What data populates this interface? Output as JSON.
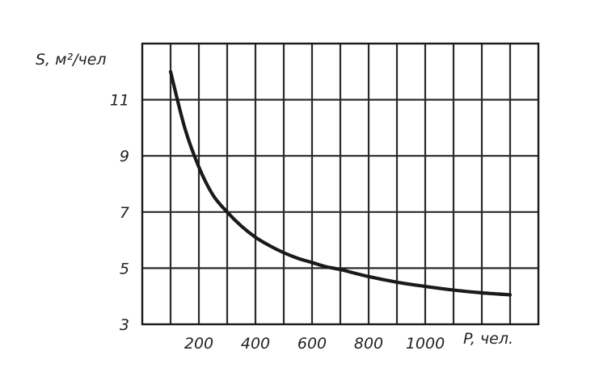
{
  "chart_data": {
    "type": "line",
    "xlabel": "P, чел.",
    "ylabel": "S, м²/чел",
    "xlim": [
      0,
      1400
    ],
    "ylim": [
      3,
      13
    ],
    "x_ticks": [
      200,
      400,
      600,
      800,
      1000
    ],
    "x_tick_labels": [
      "200",
      "400",
      "600",
      "800",
      "1000"
    ],
    "y_ticks": [
      3,
      5,
      7,
      9,
      11
    ],
    "y_tick_labels": [
      "3",
      "5",
      "7",
      "9",
      "11"
    ],
    "grid": true,
    "series": [
      {
        "x": [
          100,
          150,
          200,
          250,
          300,
          350,
          400,
          450,
          500,
          550,
          600,
          650,
          700,
          800,
          900,
          1000,
          1100,
          1200,
          1300
        ],
        "y": [
          12.0,
          10.0,
          8.6,
          7.6,
          7.0,
          6.5,
          6.1,
          5.8,
          5.55,
          5.35,
          5.2,
          5.05,
          4.95,
          4.7,
          4.5,
          4.35,
          4.22,
          4.12,
          4.05
        ]
      }
    ]
  }
}
